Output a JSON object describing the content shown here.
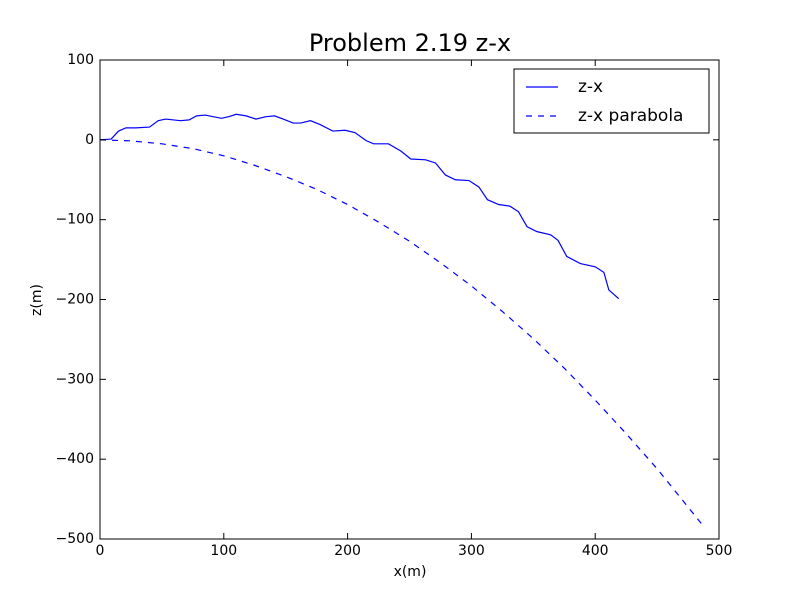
{
  "chart_data": {
    "type": "line",
    "title": "Problem 2.19 z-x",
    "x_label": "x(m)",
    "y_label": "z(m)",
    "xlim": [
      0,
      500
    ],
    "ylim": [
      -500,
      100
    ],
    "xticks": [
      0,
      100,
      200,
      300,
      400,
      500
    ],
    "yticks": [
      {
        "value": -500,
        "label": "−500"
      },
      {
        "value": -400,
        "label": "−400"
      },
      {
        "value": -300,
        "label": "−300"
      },
      {
        "value": -200,
        "label": "−200"
      },
      {
        "value": -100,
        "label": "−100"
      },
      0,
      100
    ],
    "legend": "upper right",
    "series": [
      {
        "name": "z-x",
        "color": "#0000ff",
        "linestyle": "solid",
        "x": [
          0,
          9,
          15,
          21,
          29,
          40,
          47,
          53,
          65,
          72,
          78,
          85,
          98,
          104,
          110,
          118,
          126,
          134,
          141,
          148,
          156,
          162,
          170,
          178,
          188,
          198,
          206,
          215,
          221,
          233,
          243,
          251,
          263,
          271,
          279,
          287,
          298,
          306,
          313,
          322,
          331,
          338,
          345,
          353,
          364,
          370,
          377,
          388,
          400,
          407,
          411,
          419
        ],
        "values": [
          0,
          1,
          11,
          15,
          15,
          16,
          24,
          26,
          24,
          25,
          30,
          31,
          27,
          29,
          32,
          30,
          26,
          29,
          30,
          26,
          21,
          21,
          24,
          19,
          11,
          12,
          9,
          -1,
          -5,
          -5,
          -14,
          -24,
          -25,
          -29,
          -44,
          -50,
          -51,
          -59,
          -75,
          -81,
          -83,
          -90,
          -109,
          -115,
          -119,
          -126,
          -146,
          -155,
          -159,
          -166,
          -188,
          -199
        ]
      },
      {
        "name": "z-x parabola",
        "color": "#0000ff",
        "linestyle": "dashed",
        "x": [
          0,
          25,
          50,
          75,
          100,
          125,
          150,
          175,
          200,
          225,
          250,
          275,
          300,
          325,
          350,
          375,
          400,
          425,
          450,
          475,
          488
        ],
        "values": [
          0,
          -1.3,
          -5,
          -11,
          -20,
          -32,
          -46,
          -62,
          -81,
          -103,
          -127,
          -154,
          -183,
          -215,
          -249,
          -286,
          -326,
          -368,
          -412,
          -460,
          -485
        ]
      }
    ]
  }
}
